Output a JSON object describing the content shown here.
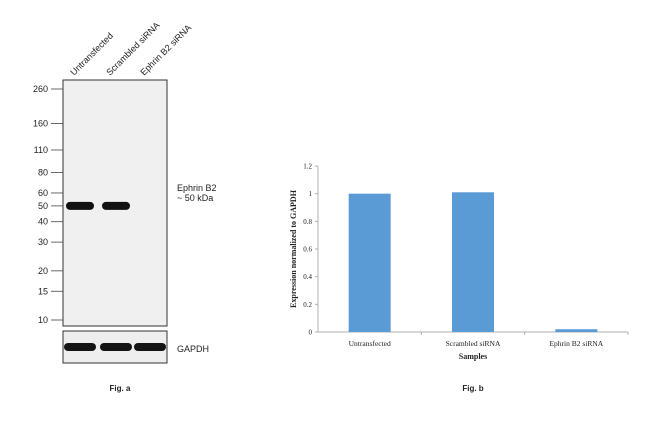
{
  "blot": {
    "lane_labels": [
      "Untransfected",
      "Scrambled siRNA",
      "Ephrin B2 siRNA"
    ],
    "ladder_kda": [
      260,
      160,
      110,
      80,
      60,
      50,
      40,
      30,
      20,
      15,
      10
    ],
    "ladder_labels": [
      "260",
      "160",
      "110",
      "80",
      "60",
      "50",
      "40",
      "30",
      "20",
      "15",
      "10"
    ],
    "band_label_line1": "Ephrin B2",
    "band_label_line2": "~ 50 kDa",
    "band_kda": 50,
    "band_present": [
      true,
      true,
      false
    ],
    "loading_control_label": "GAPDH",
    "caption": "Fig. a"
  },
  "chart_data": {
    "type": "bar",
    "categories": [
      "Untransfected",
      "Scrambled siRNA",
      "Ephrin B2 siRNA"
    ],
    "values": [
      1.0,
      1.01,
      0.02
    ],
    "xlabel": "Samples",
    "ylabel": "Expression normalized to GAPDH",
    "ylim": [
      0,
      1.2
    ],
    "yticks": [
      0,
      0.2,
      0.4,
      0.6,
      0.8,
      1,
      1.2
    ],
    "ytick_labels": [
      "0",
      "0.2",
      "0.4",
      "0.6",
      "0.8",
      "1",
      "1.2"
    ],
    "grid": false,
    "bar_color": "#5b9bd5",
    "caption": "Fig. b"
  }
}
